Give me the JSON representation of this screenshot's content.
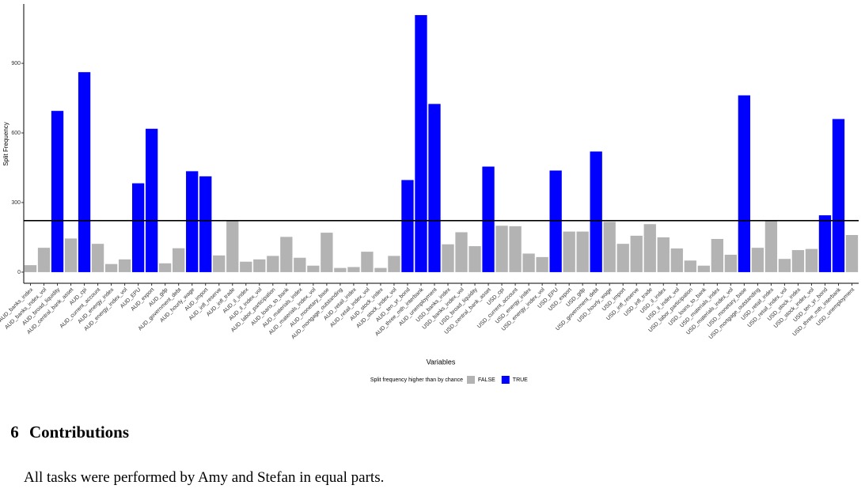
{
  "chart_data": {
    "type": "bar",
    "x_label": "Variables",
    "y_label": "Split Frequency",
    "categories": [
      "AUD_banks_index",
      "AUD_banks_index_vol",
      "AUD_broad_liquidity",
      "AUD_central_bank_asset",
      "AUD_cpi",
      "AUD_current_account",
      "AUD_energy_index",
      "AUD_energy_index_vol",
      "AUD_EPU",
      "AUD_export",
      "AUD_gdp",
      "AUD_government_debt",
      "AUD_hourly_wage",
      "AUD_import",
      "AUD_infl_reserve",
      "AUD_infl_trade",
      "AUD_il_index",
      "AUD_il_index_vol",
      "AUD_labor_participation",
      "AUD_loans_to_bank",
      "AUD_materials_index",
      "AUD_materials_index_vol",
      "AUD_monetary_base",
      "AUD_mortgage_outstanding",
      "AUD_retail_index",
      "AUD_retail_index_vol",
      "AUD_stock_index",
      "AUD_stock_index_vol",
      "AUD_ten_yr_bond",
      "AUD_three_mth_interbank",
      "AUD_unemployment",
      "USD_banks_index",
      "USD_banks_index_vol",
      "USD_broad_liquidity",
      "USD_central_bank_asset",
      "USD_cpi",
      "USD_current_account",
      "USD_energy_index",
      "USD_energy_index_vol",
      "USD_EPU",
      "USD_export",
      "USD_gdp",
      "USD_government_debt",
      "USD_hourly_wage",
      "USD_import",
      "USD_infl_reserve",
      "USD_infl_trade",
      "USD_il_index",
      "USD_il_index_vol",
      "USD_labor_participation",
      "USD_loans_to_bank",
      "USD_materials_index",
      "USD_materials_index_vol",
      "USD_monetary_base",
      "USD_mortgage_outstanding",
      "USD_retail_index",
      "USD_retail_index_vol",
      "USD_stock_index",
      "USD_stock_index_vol",
      "USD_ten_yr_bond",
      "USD_three_mth_interbank",
      "USD_unemployment"
    ],
    "values": [
      30,
      105,
      695,
      145,
      862,
      122,
      35,
      55,
      383,
      618,
      38,
      103,
      435,
      413,
      72,
      222,
      45,
      55,
      70,
      152,
      62,
      28,
      170,
      18,
      22,
      88,
      18,
      70,
      397,
      1108,
      725,
      120,
      172,
      112,
      455,
      200,
      198,
      80,
      65,
      438,
      175,
      175,
      520,
      217,
      122,
      157,
      207,
      150,
      102,
      50,
      28,
      143,
      75,
      762,
      105,
      222,
      57,
      95,
      100,
      245,
      660,
      160
    ],
    "above_chance": [
      false,
      false,
      true,
      false,
      true,
      false,
      false,
      false,
      true,
      true,
      false,
      false,
      true,
      true,
      false,
      false,
      false,
      false,
      false,
      false,
      false,
      false,
      false,
      false,
      false,
      false,
      false,
      false,
      true,
      true,
      true,
      false,
      false,
      false,
      true,
      false,
      false,
      false,
      false,
      true,
      false,
      false,
      true,
      false,
      false,
      false,
      false,
      false,
      false,
      false,
      false,
      false,
      false,
      true,
      false,
      false,
      false,
      false,
      false,
      true,
      true,
      false
    ],
    "reference_line": 222,
    "ylim": [
      -48,
      1156
    ],
    "yticks": [
      0,
      300,
      600,
      900
    ],
    "legend": {
      "title": "Split frequency higher than by chance",
      "entries": [
        {
          "name": "FALSE",
          "color": "#b3b3b3"
        },
        {
          "name": "TRUE",
          "color": "#0000ff"
        }
      ]
    }
  },
  "section": {
    "number": "6",
    "title": "Contributions"
  },
  "paragraph": "All tasks were performed by Amy and Stefan in equal parts."
}
